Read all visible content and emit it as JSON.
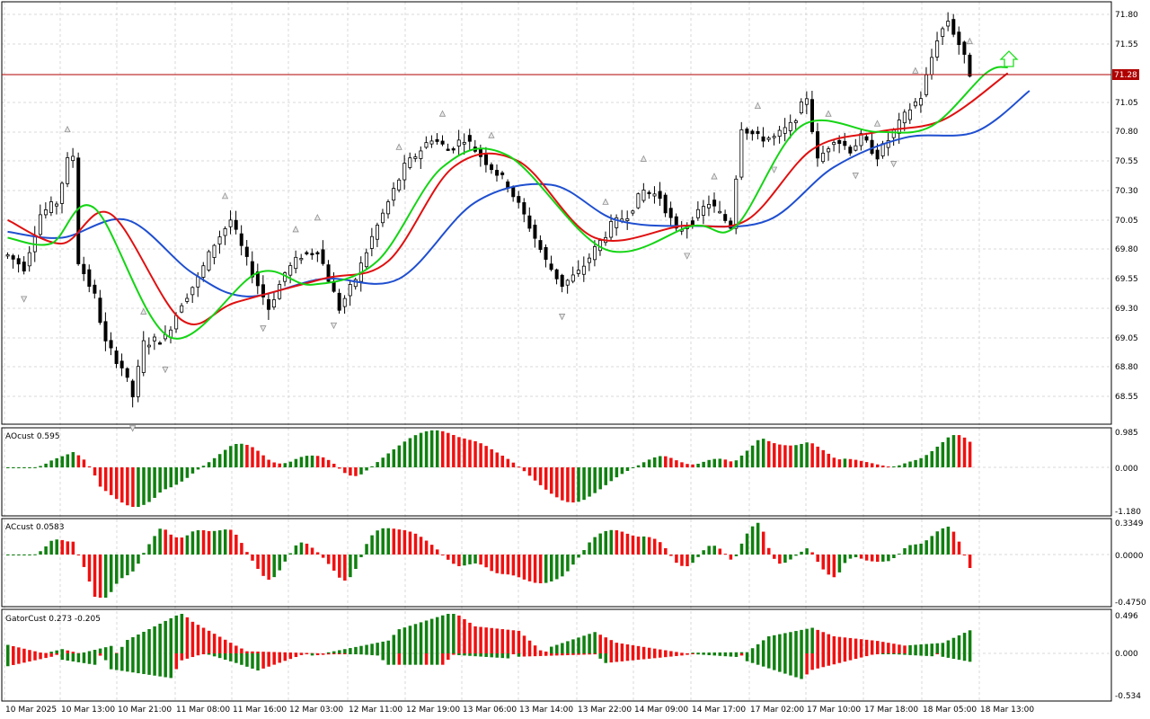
{
  "colors": {
    "background": "#ffffff",
    "frame": "#000000",
    "grid": "#d8d8d8",
    "bull_candle_fill": "#ffffff",
    "bear_candle_fill": "#000000",
    "jaw": "#1f4fd0",
    "teeth": "#e01010",
    "lips": "#14d414",
    "histogram_up": "#108010",
    "histogram_down": "#f01010",
    "price_line": "#b00000",
    "price_label_bg": "#b00000",
    "fractal_icon": "#909090",
    "signal_arrow": "#22dd22"
  },
  "main": {
    "current_price": "71.28",
    "price_ticks": [
      "71.80",
      "71.55",
      "71.05",
      "70.80",
      "70.55",
      "70.30",
      "70.05",
      "69.80",
      "69.55",
      "69.30",
      "69.05",
      "68.80",
      "68.55"
    ],
    "time_ticks": [
      "10 Mar 2025",
      "10 Mar 13:00",
      "10 Mar 21:00",
      "11 Mar 08:00",
      "11 Mar 16:00",
      "12 Mar 03:00",
      "12 Mar 11:00",
      "12 Mar 19:00",
      "13 Mar 06:00",
      "13 Mar 14:00",
      "13 Mar 22:00",
      "14 Mar 09:00",
      "14 Mar 17:00",
      "17 Mar 02:00",
      "17 Mar 10:00",
      "17 Mar 18:00",
      "18 Mar 05:00",
      "18 Mar 13:00"
    ],
    "signal_arrow": "up-arrow-icon"
  },
  "indicators": [
    {
      "label": "AOcust 0.595",
      "ticks": [
        "0.985",
        "0.000",
        "-1.180"
      ]
    },
    {
      "label": "ACcust 0.0583",
      "ticks": [
        "0.3349",
        "0.0000",
        "-0.4750"
      ]
    },
    {
      "label": "GatorCust 0.273 -0.205",
      "ticks": [
        "0.496",
        "0.000",
        "-0.534"
      ]
    }
  ],
  "chart_data": {
    "type": "candlestick",
    "symbol_price_scale": [
      68.4,
      71.9
    ],
    "price_anchors": [
      [
        0,
        69.75
      ],
      [
        3,
        69.65
      ],
      [
        6,
        70.1
      ],
      [
        9,
        70.2
      ],
      [
        11,
        70.55
      ],
      [
        12,
        70.6
      ],
      [
        13,
        69.7
      ],
      [
        16,
        69.4
      ],
      [
        18,
        69.0
      ],
      [
        21,
        68.8
      ],
      [
        23,
        68.55
      ],
      [
        25,
        69.0
      ],
      [
        29,
        69.05
      ],
      [
        32,
        69.35
      ],
      [
        35,
        69.55
      ],
      [
        38,
        69.85
      ],
      [
        41,
        70.05
      ],
      [
        44,
        69.7
      ],
      [
        46,
        69.5
      ],
      [
        48,
        69.3
      ],
      [
        51,
        69.6
      ],
      [
        54,
        69.75
      ],
      [
        57,
        69.8
      ],
      [
        59,
        69.55
      ],
      [
        61,
        69.3
      ],
      [
        64,
        69.55
      ],
      [
        67,
        69.9
      ],
      [
        70,
        70.2
      ],
      [
        73,
        70.5
      ],
      [
        75,
        70.6
      ],
      [
        78,
        70.75
      ],
      [
        81,
        70.65
      ],
      [
        84,
        70.75
      ],
      [
        87,
        70.6
      ],
      [
        89,
        70.5
      ],
      [
        92,
        70.35
      ],
      [
        96,
        70.0
      ],
      [
        99,
        69.7
      ],
      [
        102,
        69.5
      ],
      [
        105,
        69.6
      ],
      [
        108,
        69.8
      ],
      [
        111,
        70.0
      ],
      [
        114,
        70.1
      ],
      [
        117,
        70.3
      ],
      [
        120,
        70.25
      ],
      [
        123,
        69.95
      ],
      [
        126,
        70.05
      ],
      [
        129,
        70.2
      ],
      [
        131,
        70.1
      ],
      [
        133,
        70.0
      ],
      [
        135,
        70.85
      ],
      [
        138,
        70.75
      ],
      [
        141,
        70.75
      ],
      [
        144,
        70.85
      ],
      [
        147,
        71.1
      ],
      [
        149,
        70.55
      ],
      [
        152,
        70.75
      ],
      [
        155,
        70.65
      ],
      [
        157,
        70.75
      ],
      [
        160,
        70.6
      ],
      [
        163,
        70.8
      ],
      [
        166,
        71.0
      ],
      [
        168,
        71.1
      ],
      [
        171,
        71.6
      ],
      [
        173,
        71.75
      ],
      [
        175,
        71.55
      ],
      [
        177,
        71.3
      ]
    ],
    "alligator": {
      "jaw": [
        [
          0,
          69.95
        ],
        [
          10,
          69.9
        ],
        [
          22,
          70.05
        ],
        [
          34,
          69.6
        ],
        [
          44,
          69.4
        ],
        [
          58,
          69.55
        ],
        [
          72,
          69.55
        ],
        [
          86,
          70.2
        ],
        [
          100,
          70.35
        ],
        [
          112,
          70.05
        ],
        [
          126,
          70.0
        ],
        [
          140,
          70.05
        ],
        [
          152,
          70.5
        ],
        [
          165,
          70.75
        ],
        [
          178,
          70.8
        ],
        [
          188,
          71.15
        ]
      ],
      "teeth": [
        [
          0,
          70.05
        ],
        [
          10,
          69.85
        ],
        [
          19,
          70.1
        ],
        [
          32,
          69.2
        ],
        [
          42,
          69.35
        ],
        [
          58,
          69.55
        ],
        [
          70,
          69.7
        ],
        [
          82,
          70.5
        ],
        [
          94,
          70.55
        ],
        [
          108,
          69.9
        ],
        [
          124,
          70.0
        ],
        [
          136,
          70.05
        ],
        [
          148,
          70.65
        ],
        [
          160,
          70.8
        ],
        [
          172,
          70.9
        ],
        [
          184,
          71.3
        ]
      ],
      "lips": [
        [
          0,
          69.9
        ],
        [
          8,
          69.85
        ],
        [
          16,
          70.15
        ],
        [
          30,
          69.05
        ],
        [
          46,
          69.6
        ],
        [
          56,
          69.5
        ],
        [
          68,
          69.7
        ],
        [
          80,
          70.5
        ],
        [
          92,
          70.6
        ],
        [
          110,
          69.8
        ],
        [
          126,
          70.0
        ],
        [
          134,
          70.0
        ],
        [
          146,
          70.85
        ],
        [
          160,
          70.8
        ],
        [
          170,
          70.85
        ],
        [
          180,
          71.3
        ],
        [
          184,
          71.35
        ]
      ]
    },
    "ao_range": [
      -1.18,
      0.985
    ],
    "ac_range": [
      -0.475,
      0.3349
    ],
    "gator_range": [
      -0.534,
      0.496
    ]
  }
}
